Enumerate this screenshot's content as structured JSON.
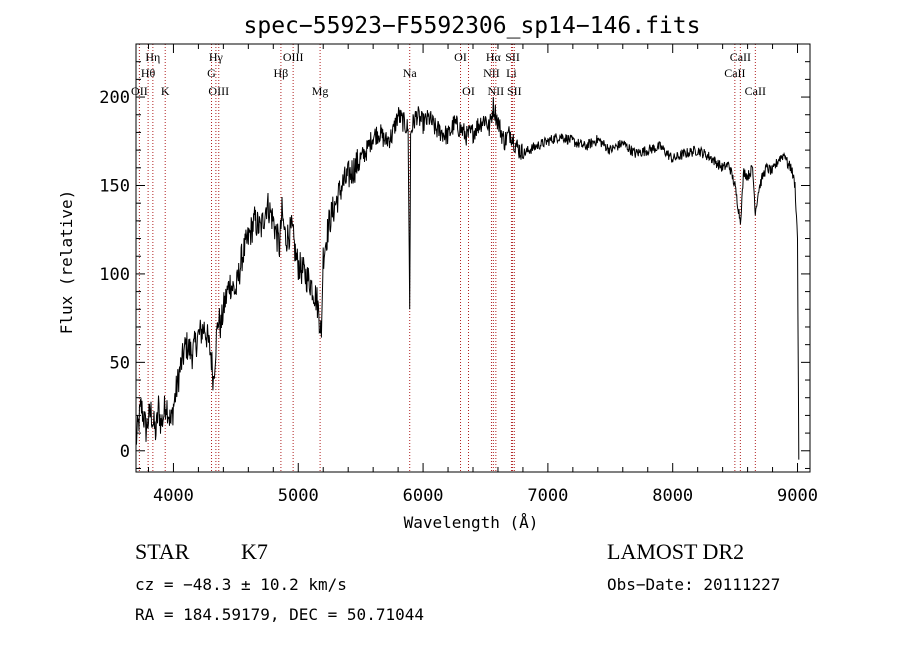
{
  "chart_data": {
    "type": "line",
    "title": "spec−55923−F5592306_sp14−146.fits",
    "xlabel": "Wavelength (Å)",
    "ylabel": "Flux (relative)",
    "xlim": [
      3700,
      9100
    ],
    "ylim": [
      -12,
      230
    ],
    "x_ticks": [
      4000,
      5000,
      6000,
      7000,
      8000,
      9000
    ],
    "y_ticks": [
      0,
      50,
      100,
      150,
      200
    ],
    "grid": false,
    "series": [
      {
        "color": "#000000",
        "x": [
          3700,
          3720,
          3740,
          3760,
          3780,
          3800,
          3820,
          3840,
          3860,
          3880,
          3900,
          3920,
          3940,
          3960,
          3980,
          4000,
          4050,
          4100,
          4150,
          4200,
          4250,
          4300,
          4320,
          4340,
          4360,
          4380,
          4400,
          4450,
          4500,
          4550,
          4600,
          4650,
          4700,
          4750,
          4800,
          4850,
          4870,
          4880,
          4900,
          4950,
          4980,
          5000,
          5050,
          5100,
          5150,
          5180,
          5185,
          5200,
          5250,
          5300,
          5350,
          5400,
          5450,
          5500,
          5550,
          5600,
          5650,
          5700,
          5750,
          5800,
          5850,
          5880,
          5893,
          5900,
          5920,
          5950,
          6000,
          6050,
          6100,
          6150,
          6200,
          6250,
          6300,
          6350,
          6400,
          6450,
          6500,
          6530,
          6563,
          6600,
          6650,
          6700,
          6750,
          6800,
          6850,
          6900,
          7000,
          7100,
          7200,
          7300,
          7400,
          7500,
          7600,
          7700,
          7800,
          7900,
          8000,
          8100,
          8200,
          8300,
          8400,
          8450,
          8498,
          8520,
          8542,
          8570,
          8600,
          8640,
          8662,
          8690,
          8720,
          8750,
          8800,
          8850,
          8900,
          8920,
          8950,
          8980,
          9000,
          9010
        ],
        "y": [
          5,
          15,
          25,
          20,
          12,
          18,
          22,
          15,
          10,
          25,
          15,
          20,
          28,
          22,
          15,
          25,
          45,
          60,
          55,
          65,
          70,
          55,
          40,
          60,
          75,
          70,
          80,
          95,
          90,
          110,
          120,
          130,
          125,
          140,
          130,
          115,
          135,
          128,
          120,
          125,
          110,
          105,
          100,
          95,
          85,
          70,
          64,
          110,
          130,
          140,
          150,
          155,
          160,
          165,
          170,
          178,
          180,
          175,
          178,
          190,
          185,
          182,
          80,
          180,
          185,
          190,
          185,
          188,
          182,
          180,
          178,
          185,
          182,
          178,
          180,
          185,
          188,
          182,
          195,
          186,
          175,
          180,
          172,
          168,
          170,
          172,
          175,
          178,
          175,
          172,
          176,
          170,
          174,
          168,
          170,
          172,
          165,
          168,
          170,
          166,
          160,
          162,
          150,
          140,
          130,
          158,
          155,
          160,
          135,
          148,
          155,
          160,
          158,
          165,
          168,
          162,
          160,
          150,
          120,
          -5
        ]
      }
    ],
    "spectral_lines": [
      {
        "label": "Hη",
        "x": 3835,
        "row": 1
      },
      {
        "label": "Hθ",
        "x": 3797,
        "row": 2
      },
      {
        "label": "OII",
        "x": 3727,
        "row": 3
      },
      {
        "label": "K",
        "x": 3934,
        "row": 3
      },
      {
        "label": "Hγ",
        "x": 4340,
        "row": 1
      },
      {
        "label": "G",
        "x": 4305,
        "row": 2
      },
      {
        "label": "OIII",
        "x": 4363,
        "row": 3
      },
      {
        "label": "OIII",
        "x": 4959,
        "row": 1
      },
      {
        "label": "Hβ",
        "x": 4861,
        "row": 2
      },
      {
        "label": "Mg",
        "x": 5175,
        "row": 3
      },
      {
        "label": "Na",
        "x": 5893,
        "row": 2
      },
      {
        "label": "OI",
        "x": 6300,
        "row": 1
      },
      {
        "label": "OI",
        "x": 6364,
        "row": 3
      },
      {
        "label": "Hα",
        "x": 6563,
        "row": 1
      },
      {
        "label": "NII",
        "x": 6548,
        "row": 2
      },
      {
        "label": "NII",
        "x": 6583,
        "row": 3
      },
      {
        "label": "SII",
        "x": 6717,
        "row": 1
      },
      {
        "label": "Li",
        "x": 6708,
        "row": 2
      },
      {
        "label": "SII",
        "x": 6731,
        "row": 3
      },
      {
        "label": "CaII",
        "x": 8542,
        "row": 1
      },
      {
        "label": "CaII",
        "x": 8498,
        "row": 2
      },
      {
        "label": "CaII",
        "x": 8662,
        "row": 3
      }
    ],
    "spectral_line_color": "#b02020",
    "axis_color": "#000000"
  },
  "info": {
    "object_type": "STAR",
    "subclass": "K7",
    "survey": "LAMOST DR2",
    "redshift": "cz = −48.3 ± 10.2 km/s",
    "obs_date": "Obs−Date: 20111227",
    "coords": "RA = 184.59179, DEC =  50.71044"
  }
}
